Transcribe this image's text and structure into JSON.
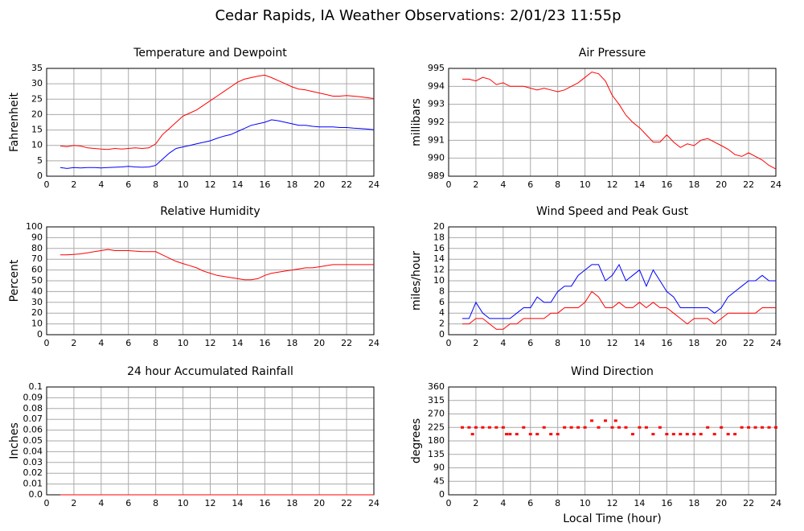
{
  "title": "Cedar Rapids, IA Weather Observations: 2/01/23 11:55p",
  "chart_data": [
    {
      "type": "line",
      "title": "Temperature and Dewpoint",
      "ylabel": "Fahrenheit",
      "grid": true,
      "xlim": [
        0,
        24
      ],
      "xticks": [
        0,
        2,
        4,
        6,
        8,
        10,
        12,
        14,
        16,
        18,
        20,
        22,
        24
      ],
      "ylim": [
        0,
        35
      ],
      "yticks": [
        0,
        5,
        10,
        15,
        20,
        25,
        30,
        35
      ],
      "x": [
        1,
        1.5,
        2,
        2.5,
        3,
        3.5,
        4,
        4.5,
        5,
        5.5,
        6,
        6.5,
        7,
        7.5,
        8,
        8.5,
        9,
        9.5,
        10,
        10.5,
        11,
        11.5,
        12,
        12.5,
        13,
        13.5,
        14,
        14.5,
        15,
        15.5,
        16,
        16.5,
        17,
        17.5,
        18,
        18.5,
        19,
        19.5,
        20,
        20.5,
        21,
        21.5,
        22,
        22.5,
        23,
        23.5,
        24
      ],
      "series": [
        {
          "color": "#ff0000",
          "values": [
            9.8,
            9.6,
            10,
            9.8,
            9.2,
            9,
            8.8,
            8.7,
            9,
            8.8,
            9,
            9.2,
            9,
            9.2,
            10.5,
            13.5,
            15.5,
            17.5,
            19.5,
            20.5,
            21.5,
            23,
            24.5,
            26,
            27.5,
            29,
            30.5,
            31.5,
            32,
            32.5,
            32.8,
            32,
            31,
            30,
            29,
            28.3,
            28,
            27.5,
            27,
            26.5,
            26,
            26,
            26.2,
            26,
            25.8,
            25.5,
            25.2
          ]
        },
        {
          "color": "#0000ff",
          "values": [
            2.8,
            2.5,
            2.8,
            2.7,
            2.8,
            2.8,
            2.7,
            2.8,
            2.9,
            3,
            3.2,
            3,
            2.9,
            3,
            3.5,
            5.5,
            7.5,
            9,
            9.5,
            10,
            10.5,
            11,
            11.5,
            12.3,
            13,
            13.5,
            14.5,
            15.5,
            16.5,
            17,
            17.5,
            18.3,
            18,
            17.5,
            17,
            16.5,
            16.5,
            16.2,
            16,
            16,
            16,
            15.8,
            15.8,
            15.6,
            15.5,
            15.3,
            15.1
          ]
        }
      ]
    },
    {
      "type": "line",
      "title": "Air Pressure",
      "ylabel": "millibars",
      "grid": true,
      "xlim": [
        0,
        24
      ],
      "xticks": [
        0,
        2,
        4,
        6,
        8,
        10,
        12,
        14,
        16,
        18,
        20,
        22,
        24
      ],
      "ylim": [
        989,
        995
      ],
      "yticks": [
        989,
        990,
        991,
        992,
        993,
        994,
        995
      ],
      "x": [
        1,
        1.5,
        2,
        2.5,
        3,
        3.5,
        4,
        4.5,
        5,
        5.5,
        6,
        6.5,
        7,
        7.5,
        8,
        8.5,
        9,
        9.5,
        10,
        10.5,
        11,
        11.5,
        12,
        12.5,
        13,
        13.5,
        14,
        14.5,
        15,
        15.5,
        16,
        16.5,
        17,
        17.5,
        18,
        18.5,
        19,
        19.5,
        20,
        20.5,
        21,
        21.5,
        22,
        22.5,
        23,
        23.5,
        24
      ],
      "series": [
        {
          "color": "#ff0000",
          "values": [
            994.4,
            994.4,
            994.3,
            994.5,
            994.4,
            994.1,
            994.2,
            994,
            994,
            994,
            993.9,
            993.8,
            993.9,
            993.8,
            993.7,
            993.8,
            994,
            994.2,
            994.5,
            994.8,
            994.7,
            994.3,
            993.5,
            993,
            992.4,
            992,
            991.7,
            991.3,
            990.9,
            990.9,
            991.3,
            990.9,
            990.6,
            990.8,
            990.7,
            991,
            991.1,
            990.9,
            990.7,
            990.5,
            990.2,
            990.1,
            990.3,
            990.1,
            989.9,
            989.6,
            989.4
          ]
        }
      ]
    },
    {
      "type": "line",
      "title": "Relative Humidity",
      "ylabel": "Percent",
      "grid": true,
      "xlim": [
        0,
        24
      ],
      "xticks": [
        0,
        2,
        4,
        6,
        8,
        10,
        12,
        14,
        16,
        18,
        20,
        22,
        24
      ],
      "ylim": [
        0,
        100
      ],
      "yticks": [
        0,
        10,
        20,
        30,
        40,
        50,
        60,
        70,
        80,
        90,
        100
      ],
      "x": [
        1,
        1.5,
        2,
        2.5,
        3,
        3.5,
        4,
        4.5,
        5,
        5.5,
        6,
        6.5,
        7,
        7.5,
        8,
        8.5,
        9,
        9.5,
        10,
        10.5,
        11,
        11.5,
        12,
        12.5,
        13,
        13.5,
        14,
        14.5,
        15,
        15.5,
        16,
        16.5,
        17,
        17.5,
        18,
        18.5,
        19,
        19.5,
        20,
        20.5,
        21,
        21.5,
        22,
        22.5,
        23,
        23.5,
        24
      ],
      "series": [
        {
          "color": "#ff0000",
          "values": [
            74,
            74,
            74.5,
            75,
            76,
            77,
            78,
            79,
            78,
            78,
            78,
            77.5,
            77,
            77,
            77,
            74,
            71,
            68,
            66,
            64,
            62,
            59,
            57,
            55,
            54,
            53,
            52,
            51,
            51,
            52,
            55,
            57,
            58,
            59,
            60,
            61,
            62,
            62,
            63,
            64,
            65,
            65,
            65,
            65,
            65,
            65,
            65
          ]
        }
      ]
    },
    {
      "type": "line",
      "title": "Wind Speed and Peak Gust",
      "ylabel": "miles/hour",
      "grid": true,
      "xlim": [
        0,
        24
      ],
      "xticks": [
        0,
        2,
        4,
        6,
        8,
        10,
        12,
        14,
        16,
        18,
        20,
        22,
        24
      ],
      "ylim": [
        0,
        20
      ],
      "yticks": [
        0,
        2,
        4,
        6,
        8,
        10,
        12,
        14,
        16,
        18,
        20
      ],
      "x": [
        1,
        1.5,
        2,
        2.5,
        3,
        3.5,
        4,
        4.5,
        5,
        5.5,
        6,
        6.5,
        7,
        7.5,
        8,
        8.5,
        9,
        9.5,
        10,
        10.5,
        11,
        11.5,
        12,
        12.5,
        13,
        13.5,
        14,
        14.5,
        15,
        15.5,
        16,
        16.5,
        17,
        17.5,
        18,
        18.5,
        19,
        19.5,
        20,
        20.5,
        21,
        21.5,
        22,
        22.5,
        23,
        23.5,
        24
      ],
      "series": [
        {
          "color": "#0000ff",
          "values": [
            3,
            3,
            6,
            4,
            3,
            3,
            3,
            3,
            4,
            5,
            5,
            7,
            6,
            6,
            8,
            9,
            9,
            11,
            12,
            13,
            13,
            10,
            11,
            13,
            10,
            11,
            12,
            9,
            12,
            10,
            8,
            7,
            5,
            5,
            5,
            5,
            5,
            4,
            5,
            7,
            8,
            9,
            10,
            10,
            11,
            10,
            10
          ]
        },
        {
          "color": "#ff0000",
          "values": [
            2,
            2,
            3,
            3,
            2,
            1,
            1,
            2,
            2,
            3,
            3,
            3,
            3,
            4,
            4,
            5,
            5,
            5,
            6,
            8,
            7,
            5,
            5,
            6,
            5,
            5,
            6,
            5,
            6,
            5,
            5,
            4,
            3,
            2,
            3,
            3,
            3,
            2,
            3,
            4,
            4,
            4,
            4,
            4,
            5,
            5,
            5
          ]
        }
      ]
    },
    {
      "type": "line",
      "title": "24 hour Accumulated Rainfall",
      "ylabel": "Inches",
      "grid": true,
      "xlim": [
        0,
        24
      ],
      "xticks": [
        0,
        2,
        4,
        6,
        8,
        10,
        12,
        14,
        16,
        18,
        20,
        22,
        24
      ],
      "ylim": [
        0,
        0.1
      ],
      "yticks": [
        {
          "value": 0,
          "label": "0.0"
        },
        0.01,
        0.02,
        0.03,
        0.04,
        0.05,
        0.06,
        0.07,
        0.08,
        0.09,
        0.1
      ],
      "x": [
        1,
        24
      ],
      "series": [
        {
          "color": "#ff0000",
          "values": [
            0,
            0
          ]
        }
      ]
    },
    {
      "type": "scatter",
      "title": "Wind Direction",
      "ylabel": "degrees",
      "xlabel": "Local Time (hour)",
      "grid": true,
      "xlim": [
        0,
        24
      ],
      "xticks": [
        0,
        2,
        4,
        6,
        8,
        10,
        12,
        14,
        16,
        18,
        20,
        22,
        24
      ],
      "ylim": [
        0,
        360
      ],
      "yticks": [
        0,
        45,
        90,
        135,
        180,
        225,
        270,
        315,
        360
      ],
      "x": [
        1,
        1.5,
        1.75,
        2,
        2.5,
        3,
        3.5,
        4,
        4.25,
        4.5,
        5,
        5.5,
        6,
        6.5,
        7,
        7.5,
        8,
        8.5,
        9,
        9.5,
        10,
        10.5,
        11,
        11.5,
        12,
        12.25,
        12.5,
        13,
        13.5,
        14,
        14.5,
        15,
        15.5,
        16,
        16.5,
        17,
        17.5,
        18,
        18.5,
        19,
        19.5,
        20,
        20.5,
        21,
        21.5,
        22,
        22.5,
        23,
        23.5,
        24
      ],
      "series": [
        {
          "color": "#ff0000",
          "values": [
            225,
            225,
            202.5,
            225,
            225,
            225,
            225,
            225,
            202.5,
            202.5,
            202.5,
            225,
            202.5,
            202.5,
            225,
            202.5,
            202.5,
            225,
            225,
            225,
            225,
            247.5,
            225,
            247.5,
            225,
            247.5,
            225,
            225,
            202.5,
            225,
            225,
            202.5,
            225,
            202.5,
            202.5,
            202.5,
            202.5,
            202.5,
            202.5,
            225,
            202.5,
            225,
            202.5,
            202.5,
            225,
            225,
            225,
            225,
            225,
            225
          ]
        }
      ]
    }
  ]
}
